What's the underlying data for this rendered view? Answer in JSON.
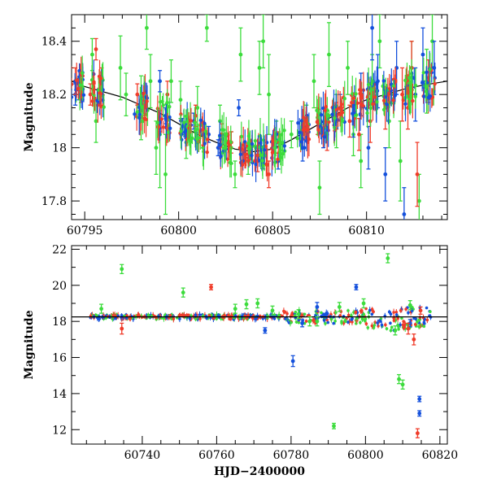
{
  "colors": {
    "red": "#f03c2a",
    "green": "#3cdc3c",
    "blue": "#1450dc",
    "model": "#000000"
  },
  "chart_data": [
    {
      "type": "scatter",
      "panel": "top",
      "xlabel": "",
      "ylabel": "Magnitude",
      "xlim": [
        60794.3,
        60814.3
      ],
      "ylim": [
        18.5,
        17.73
      ],
      "y_inverted": true,
      "xticks_major": [
        60795,
        60800,
        60805,
        60810
      ],
      "yticks_major": [
        17.8,
        18,
        18.2,
        18.4
      ],
      "xtick_labels": [
        "60795",
        "60800",
        "60805",
        "60810"
      ],
      "ytick_labels": [
        "17.8",
        "18",
        "18.2",
        "18.4"
      ],
      "model_curve": {
        "color": "model",
        "x": [
          60794.3,
          60795,
          60796,
          60797,
          60798,
          60799,
          60800,
          60801,
          60802,
          60803,
          60804,
          60805,
          60806,
          60807,
          60808,
          60809,
          60810,
          60811,
          60812,
          60813,
          60814.3
        ],
        "y": [
          18.25,
          18.23,
          18.21,
          18.19,
          18.16,
          18.13,
          18.09,
          18.05,
          18.02,
          17.995,
          17.985,
          17.995,
          18.03,
          18.07,
          18.11,
          18.15,
          18.18,
          18.2,
          18.22,
          18.235,
          18.25
        ]
      },
      "series": [
        {
          "color": "green",
          "points": [
            {
              "x": 60795.4,
              "y": 18.35,
              "err": 0.06
            },
            {
              "x": 60795.6,
              "y": 18.1,
              "err": 0.08
            },
            {
              "x": 60796.9,
              "y": 18.3,
              "err": 0.12
            },
            {
              "x": 60797.2,
              "y": 18.2,
              "err": 0.08
            },
            {
              "x": 60798.0,
              "y": 18.15,
              "err": 0.12
            },
            {
              "x": 60798.3,
              "y": 18.45,
              "err": 0.08
            },
            {
              "x": 60798.5,
              "y": 18.25,
              "err": 0.1
            },
            {
              "x": 60798.8,
              "y": 18.0,
              "err": 0.1
            },
            {
              "x": 60799.0,
              "y": 18.05,
              "err": 0.2
            },
            {
              "x": 60799.3,
              "y": 17.9,
              "err": 0.15
            },
            {
              "x": 60799.6,
              "y": 18.25,
              "err": 0.08
            },
            {
              "x": 60800.1,
              "y": 18.18,
              "err": 0.07
            },
            {
              "x": 60800.4,
              "y": 18.02,
              "err": 0.06
            },
            {
              "x": 60801.0,
              "y": 18.15,
              "err": 0.08
            },
            {
              "x": 60801.3,
              "y": 18.05,
              "err": 0.05
            },
            {
              "x": 60801.5,
              "y": 18.45,
              "err": 0.05
            },
            {
              "x": 60802.2,
              "y": 18.1,
              "err": 0.06
            },
            {
              "x": 60802.8,
              "y": 18.0,
              "err": 0.06
            },
            {
              "x": 60803.0,
              "y": 17.9,
              "err": 0.05
            },
            {
              "x": 60803.3,
              "y": 18.35,
              "err": 0.1
            },
            {
              "x": 60803.7,
              "y": 17.95,
              "err": 0.05
            },
            {
              "x": 60804.3,
              "y": 18.3,
              "err": 0.1
            },
            {
              "x": 60804.5,
              "y": 18.4,
              "err": 0.1
            },
            {
              "x": 60804.8,
              "y": 18.2,
              "err": 0.15
            },
            {
              "x": 60805.2,
              "y": 18.05,
              "err": 0.05
            },
            {
              "x": 60806.0,
              "y": 18.05,
              "err": 0.05
            },
            {
              "x": 60806.8,
              "y": 18.1,
              "err": 0.06
            },
            {
              "x": 60807.2,
              "y": 18.25,
              "err": 0.1
            },
            {
              "x": 60807.5,
              "y": 17.85,
              "err": 0.1
            },
            {
              "x": 60808.0,
              "y": 18.35,
              "err": 0.12
            },
            {
              "x": 60808.4,
              "y": 18.1,
              "err": 0.1
            },
            {
              "x": 60809.0,
              "y": 18.3,
              "err": 0.1
            },
            {
              "x": 60809.3,
              "y": 18.05,
              "err": 0.08
            },
            {
              "x": 60809.7,
              "y": 17.95,
              "err": 0.1
            },
            {
              "x": 60810.3,
              "y": 18.25,
              "err": 0.1
            },
            {
              "x": 60810.7,
              "y": 18.4,
              "err": 0.1
            },
            {
              "x": 60811.2,
              "y": 18.1,
              "err": 0.1
            },
            {
              "x": 60811.8,
              "y": 17.95,
              "err": 0.15
            },
            {
              "x": 60812.4,
              "y": 18.3,
              "err": 0.1
            },
            {
              "x": 60812.8,
              "y": 17.8,
              "err": 0.1
            },
            {
              "x": 60813.2,
              "y": 18.25,
              "err": 0.12
            },
            {
              "x": 60813.5,
              "y": 18.4,
              "err": 0.1
            }
          ]
        },
        {
          "color": "blue",
          "points": [
            {
              "x": 60794.5,
              "y": 18.2,
              "err": 0.04
            },
            {
              "x": 60794.7,
              "y": 18.22,
              "err": 0.04
            },
            {
              "x": 60799.0,
              "y": 18.25,
              "err": 0.04
            },
            {
              "x": 60799.3,
              "y": 18.12,
              "err": 0.03
            },
            {
              "x": 60800.2,
              "y": 18.08,
              "err": 0.03
            },
            {
              "x": 60800.8,
              "y": 18.1,
              "err": 0.03
            },
            {
              "x": 60801.6,
              "y": 18.05,
              "err": 0.03
            },
            {
              "x": 60802.1,
              "y": 18.0,
              "err": 0.03
            },
            {
              "x": 60803.2,
              "y": 18.15,
              "err": 0.03
            },
            {
              "x": 60803.8,
              "y": 18.0,
              "err": 0.03
            },
            {
              "x": 60804.5,
              "y": 17.95,
              "err": 0.03
            },
            {
              "x": 60805.3,
              "y": 17.95,
              "err": 0.03
            },
            {
              "x": 60807.7,
              "y": 18.05,
              "err": 0.05
            },
            {
              "x": 60808.6,
              "y": 18.15,
              "err": 0.05
            },
            {
              "x": 60809.3,
              "y": 18.1,
              "err": 0.06
            },
            {
              "x": 60810.1,
              "y": 18.0,
              "err": 0.08
            },
            {
              "x": 60810.6,
              "y": 18.25,
              "err": 0.1
            },
            {
              "x": 60811.0,
              "y": 17.9,
              "err": 0.1
            },
            {
              "x": 60811.6,
              "y": 18.3,
              "err": 0.1
            },
            {
              "x": 60812.0,
              "y": 17.75,
              "err": 0.1
            },
            {
              "x": 60812.6,
              "y": 18.2,
              "err": 0.1
            },
            {
              "x": 60813.0,
              "y": 18.35,
              "err": 0.1
            },
            {
              "x": 60813.6,
              "y": 18.3,
              "err": 0.1
            },
            {
              "x": 60810.3,
              "y": 18.45,
              "err": 0.12
            },
            {
              "x": 60809.7,
              "y": 18.2,
              "err": 0.08
            },
            {
              "x": 60806.6,
              "y": 18.0,
              "err": 0.05
            }
          ]
        },
        {
          "color": "red",
          "points": [
            {
              "x": 60794.5,
              "y": 18.25,
              "err": 0.05
            },
            {
              "x": 60794.8,
              "y": 18.22,
              "err": 0.05
            },
            {
              "x": 60795.3,
              "y": 18.2,
              "err": 0.04
            },
            {
              "x": 60795.9,
              "y": 18.26,
              "err": 0.04
            },
            {
              "x": 60795.6,
              "y": 18.37,
              "err": 0.04
            },
            {
              "x": 60797.8,
              "y": 18.2,
              "err": 0.04
            },
            {
              "x": 60798.1,
              "y": 18.16,
              "err": 0.04
            },
            {
              "x": 60799.0,
              "y": 18.1,
              "err": 0.04
            },
            {
              "x": 60799.4,
              "y": 18.2,
              "err": 0.05
            },
            {
              "x": 60800.9,
              "y": 18.12,
              "err": 0.04
            },
            {
              "x": 60801.3,
              "y": 18.05,
              "err": 0.04
            },
            {
              "x": 60802.3,
              "y": 18.05,
              "err": 0.04
            },
            {
              "x": 60802.8,
              "y": 18.02,
              "err": 0.04
            },
            {
              "x": 60803.5,
              "y": 17.98,
              "err": 0.04
            },
            {
              "x": 60804.2,
              "y": 17.95,
              "err": 0.04
            },
            {
              "x": 60804.8,
              "y": 17.9,
              "err": 0.05
            },
            {
              "x": 60805.3,
              "y": 18.02,
              "err": 0.04
            },
            {
              "x": 60806.6,
              "y": 18.05,
              "err": 0.05
            },
            {
              "x": 60807.4,
              "y": 18.1,
              "err": 0.05
            },
            {
              "x": 60807.9,
              "y": 18.05,
              "err": 0.06
            },
            {
              "x": 60808.4,
              "y": 18.12,
              "err": 0.05
            },
            {
              "x": 60809.1,
              "y": 18.1,
              "err": 0.06
            },
            {
              "x": 60809.6,
              "y": 18.05,
              "err": 0.06
            },
            {
              "x": 60810.2,
              "y": 18.1,
              "err": 0.08
            },
            {
              "x": 60811.0,
              "y": 18.15,
              "err": 0.08
            },
            {
              "x": 60811.9,
              "y": 18.2,
              "err": 0.1
            },
            {
              "x": 60812.2,
              "y": 18.15,
              "err": 0.08
            },
            {
              "x": 60812.4,
              "y": 18.3,
              "err": 0.1
            },
            {
              "x": 60812.7,
              "y": 17.9,
              "err": 0.12
            },
            {
              "x": 60813.3,
              "y": 18.25,
              "err": 0.08
            }
          ]
        }
      ]
    },
    {
      "type": "scatter",
      "panel": "bottom",
      "xlabel": "HJD−2400000",
      "ylabel": "Magnitude",
      "xlim": [
        60721,
        60822
      ],
      "ylim": [
        22.2,
        11.2
      ],
      "y_inverted": true,
      "xticks_major": [
        60740,
        60760,
        60780,
        60800,
        60820
      ],
      "yticks_major": [
        12,
        14,
        16,
        18,
        20,
        22
      ],
      "xtick_labels": [
        "60740",
        "60760",
        "60780",
        "60800",
        "60820"
      ],
      "ytick_labels": [
        "12",
        "14",
        "16",
        "18",
        "20",
        "22"
      ],
      "model_line": {
        "color": "model",
        "y": 18.25
      },
      "series": [
        {
          "color": "green",
          "points": [
            {
              "x": 60729,
              "y": 18.7,
              "err": 0.25
            },
            {
              "x": 60734.5,
              "y": 20.9,
              "err": 0.25
            },
            {
              "x": 60751,
              "y": 19.6,
              "err": 0.25
            },
            {
              "x": 60765,
              "y": 18.7,
              "err": 0.25
            },
            {
              "x": 60768,
              "y": 18.95,
              "err": 0.25
            },
            {
              "x": 60771,
              "y": 19.0,
              "err": 0.25
            },
            {
              "x": 60775,
              "y": 18.6,
              "err": 0.25
            },
            {
              "x": 60782,
              "y": 18.4,
              "err": 0.25
            },
            {
              "x": 60785,
              "y": 18.0,
              "err": 0.25
            },
            {
              "x": 60787,
              "y": 18.0,
              "err": 0.25
            },
            {
              "x": 60791.5,
              "y": 12.2,
              "err": 0.15
            },
            {
              "x": 60793,
              "y": 18.8,
              "err": 0.25
            },
            {
              "x": 60799.5,
              "y": 19.0,
              "err": 0.25
            },
            {
              "x": 60806,
              "y": 21.5,
              "err": 0.25
            },
            {
              "x": 60809,
              "y": 14.8,
              "err": 0.25
            },
            {
              "x": 60810,
              "y": 14.5,
              "err": 0.25
            },
            {
              "x": 60808,
              "y": 17.5,
              "err": 0.25
            },
            {
              "x": 60812,
              "y": 18.9,
              "err": 0.25
            }
          ]
        },
        {
          "color": "blue",
          "points": [
            {
              "x": 60773,
              "y": 17.5,
              "err": 0.15
            },
            {
              "x": 60780.5,
              "y": 15.8,
              "err": 0.3
            },
            {
              "x": 60783,
              "y": 17.9,
              "err": 0.2
            },
            {
              "x": 60787,
              "y": 18.8,
              "err": 0.25
            },
            {
              "x": 60797.5,
              "y": 19.9,
              "err": 0.15
            },
            {
              "x": 60814.5,
              "y": 12.9,
              "err": 0.15
            },
            {
              "x": 60814.5,
              "y": 13.7,
              "err": 0.15
            },
            {
              "x": 60812,
              "y": 17.9,
              "err": 0.2
            }
          ]
        },
        {
          "color": "red",
          "points": [
            {
              "x": 60734.5,
              "y": 17.6,
              "err": 0.3
            },
            {
              "x": 60758.5,
              "y": 19.9,
              "err": 0.15
            },
            {
              "x": 60814,
              "y": 11.8,
              "err": 0.25
            },
            {
              "x": 60813,
              "y": 17.0,
              "err": 0.3
            },
            {
              "x": 60811.5,
              "y": 17.6,
              "err": 0.3
            },
            {
              "x": 60814.8,
              "y": 18.6,
              "err": 0.2
            }
          ]
        }
      ],
      "dense_band": {
        "x_start": 60726,
        "x_end": 60818,
        "y_center": 18.25
      }
    }
  ]
}
